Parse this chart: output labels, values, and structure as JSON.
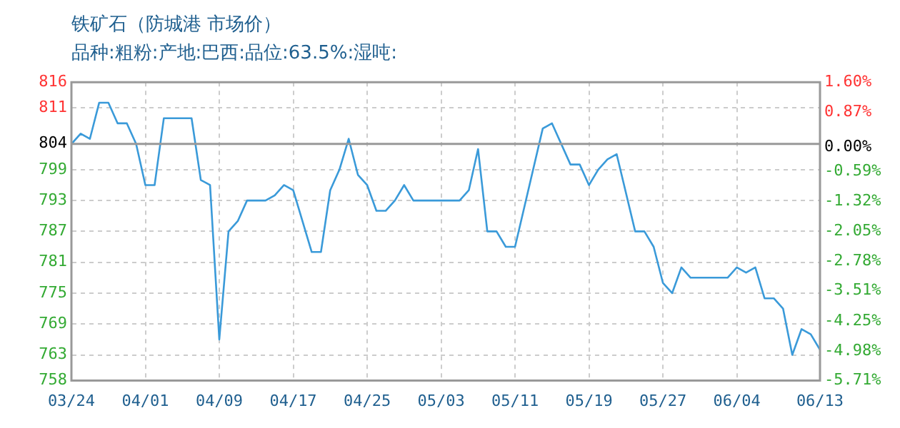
{
  "chart_data": {
    "type": "line",
    "title": "铁矿石（防城港 市场价）",
    "subtitle": "品种:粗粉:产地:巴西:品位:63.5%:湿吨:",
    "x": [
      "--03-24",
      "--03-25",
      "--03-26",
      "--03-27",
      "--03-28",
      "--03-29",
      "--03-30",
      "--03-31",
      "--04-01",
      "--04-02",
      "--04-03",
      "--04-06",
      "--04-07",
      "--04-08",
      "--04-09",
      "--04-10",
      "--04-11",
      "--04-12",
      "--04-14",
      "--04-15",
      "--04-16",
      "--04-17",
      "--04-19",
      "--04-20",
      "--04-21",
      "--04-22",
      "--04-23",
      "--04-24",
      "--04-25",
      "--04-26",
      "--04-27",
      "--04-28",
      "--04-29",
      "--04-30",
      "--05-05",
      "--05-06",
      "--05-07",
      "--05-08",
      "--05-09",
      "--05-10",
      "--05-11",
      "--05-14",
      "--05-15",
      "--05-17",
      "--05-18",
      "--05-19",
      "--05-20",
      "--05-21",
      "--05-22",
      "--05-24",
      "--05-25",
      "--05-26",
      "--05-27",
      "--05-28",
      "--05-29",
      "--05-30",
      "--06-03",
      "--06-04",
      "--06-05",
      "--06-06",
      "--06-07",
      "--06-08",
      "--06-09",
      "--06-10",
      "--06-11",
      "--06-12",
      "--06-13"
    ],
    "series": [
      {
        "color": "#3a9ad9",
        "values": [
          804,
          806,
          805,
          812,
          812,
          808,
          808,
          804,
          796,
          796,
          809,
          809,
          797,
          796,
          766,
          787,
          789,
          793,
          793,
          794,
          796,
          795,
          783,
          783,
          795,
          799,
          805,
          798,
          796,
          791,
          791,
          793,
          796,
          793,
          793,
          795,
          803,
          787,
          787,
          784,
          784,
          807,
          808,
          800,
          800,
          796,
          799,
          801,
          802,
          787,
          787,
          784,
          777,
          775,
          780,
          778,
          778,
          780,
          779,
          780,
          774,
          774,
          772,
          763,
          768,
          767,
          764
        ]
      }
    ],
    "xlim": [
      "--03-24",
      "--06-13"
    ],
    "xticks": [
      {
        "value": "--03-24",
        "label": "03/24"
      },
      {
        "value": "--04-01",
        "label": "04/01"
      },
      {
        "value": "--04-09",
        "label": "04/09"
      },
      {
        "value": "--04-17",
        "label": "04/17"
      },
      {
        "value": "--04-25",
        "label": "04/25"
      },
      {
        "value": "--05-03",
        "label": "05/03"
      },
      {
        "value": "--05-11",
        "label": "05/11"
      },
      {
        "value": "--05-19",
        "label": "05/19"
      },
      {
        "value": "--05-27",
        "label": "05/27"
      },
      {
        "value": "--06-04",
        "label": "06/04"
      },
      {
        "value": "--06-13",
        "label": "06/13"
      }
    ],
    "ylim": [
      758,
      816
    ],
    "yticks": [
      758,
      763,
      769,
      775,
      781,
      787,
      793,
      799,
      804,
      811,
      816
    ],
    "y2lim": [
      -5.71,
      1.6
    ],
    "y2ticks": [
      {
        "value": -5.71,
        "label": "-5.71%"
      },
      {
        "value": -4.98,
        "label": "-4.98%"
      },
      {
        "value": -4.25,
        "label": "-4.25%"
      },
      {
        "value": -3.51,
        "label": "-3.51%"
      },
      {
        "value": -2.78,
        "label": "-2.78%"
      },
      {
        "value": -2.05,
        "label": "-2.05%"
      },
      {
        "value": -1.32,
        "label": "-1.32%"
      },
      {
        "value": -0.59,
        "label": "-0.59%"
      },
      {
        "value": 0,
        "label": "0.00%"
      },
      {
        "value": 0.87,
        "label": "0.87%"
      },
      {
        "value": 1.6,
        "label": "1.60%"
      }
    ],
    "ref_lines": [
      {
        "axis": "y",
        "value": 804,
        "color": "#999999"
      }
    ],
    "grid": true,
    "legend": false,
    "marker": "none",
    "line_style": "solid"
  }
}
